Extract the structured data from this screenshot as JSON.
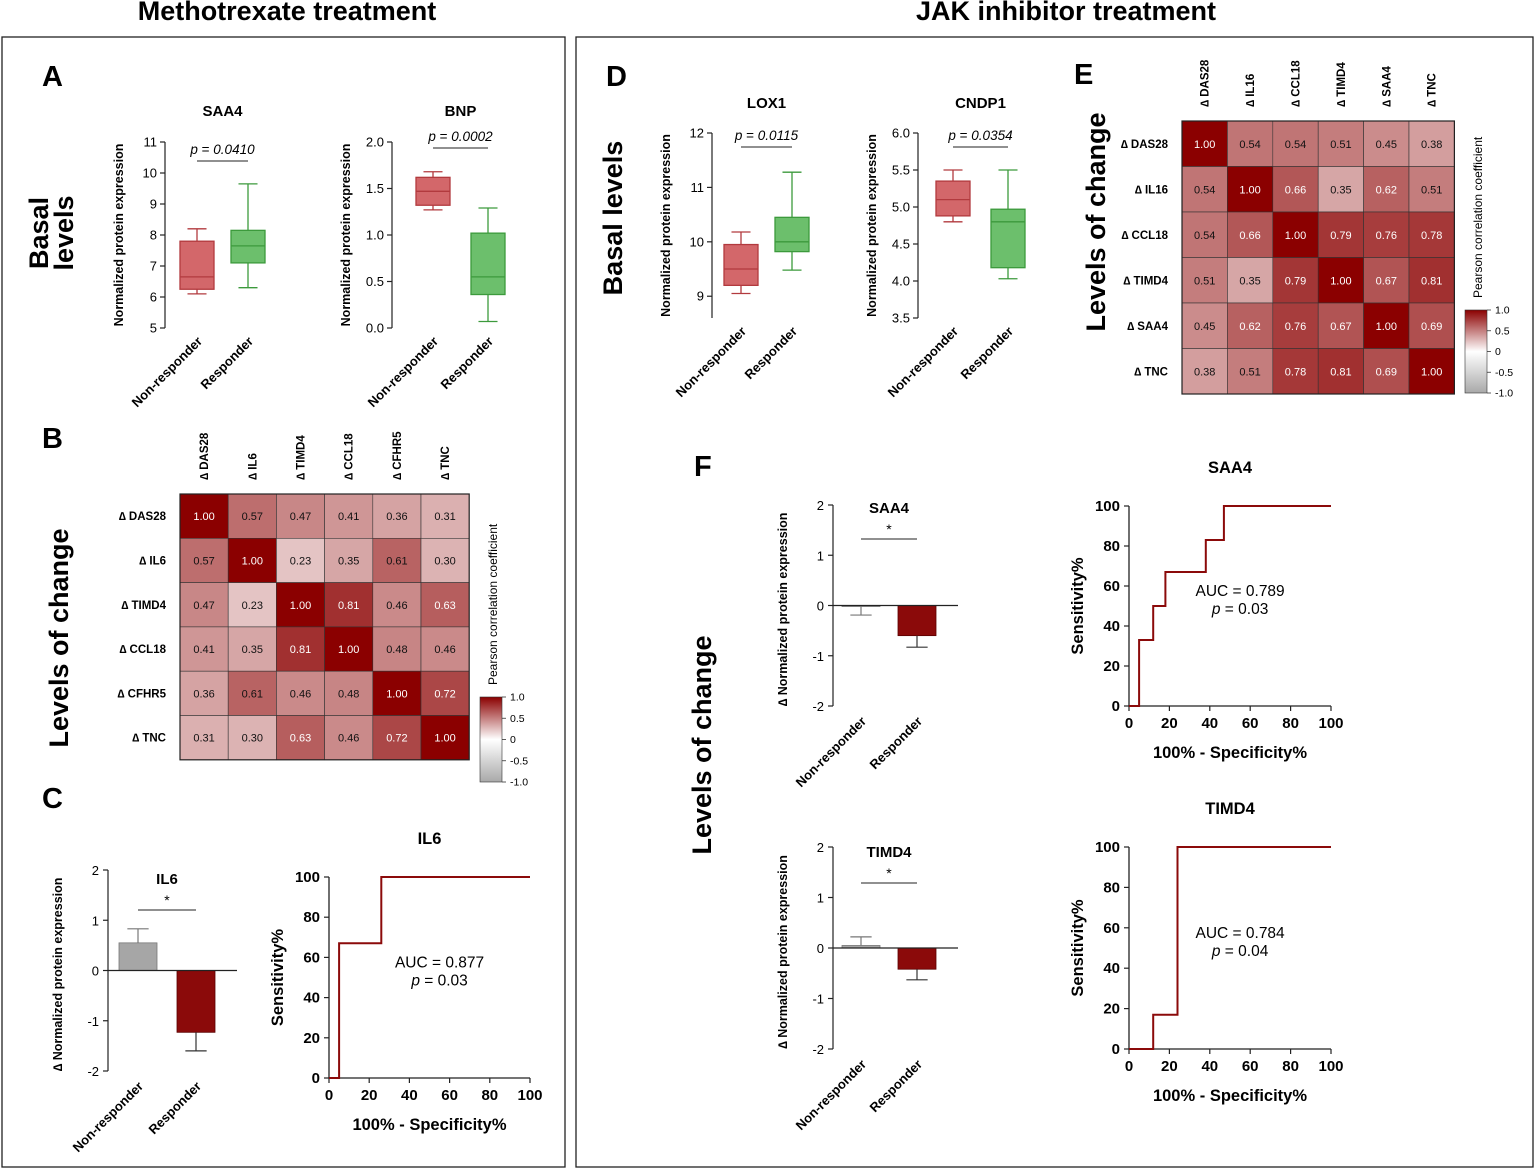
{
  "figure": {
    "left_section_title": "Methotrexate treatment",
    "right_section_title": "JAK inhibitor treatment",
    "row_labels": {
      "basal_line1": "Basal",
      "basal_line2": "levels",
      "basal_levels": "Basal levels",
      "levels_of_change": "Levels of change"
    },
    "colors": {
      "nonresponder_box": "#d3676a",
      "nonresponder_edge": "#b23a3e",
      "responder_box": "#6cbf6c",
      "responder_edge": "#3c9a3c",
      "dark_red": "#8b0a0a",
      "gray_bar": "#a6a6a6",
      "heat_high": "#8b0000",
      "heat_mid": "#ffffff",
      "heat_low": "#a9a9a9"
    }
  },
  "chart_data": [
    {
      "id": "A1",
      "panel": "A",
      "type": "box",
      "title": "SAA4",
      "ylabel": "Normalized protein expression",
      "ylim": [
        5,
        11
      ],
      "yticks": [
        "5",
        "6",
        "7",
        "8",
        "9",
        "10",
        "11"
      ],
      "p_value": "p = 0.0410",
      "categories": [
        "Non-responder",
        "Responder"
      ],
      "boxes": [
        {
          "group": "Non-responder",
          "min": 6.1,
          "q1": 6.25,
          "median": 6.65,
          "q3": 7.8,
          "max": 8.2
        },
        {
          "group": "Responder",
          "min": 6.3,
          "q1": 7.1,
          "median": 7.65,
          "q3": 8.15,
          "max": 9.65
        }
      ]
    },
    {
      "id": "A2",
      "panel": "A",
      "type": "box",
      "title": "BNP",
      "ylabel": "Normalized protein expression",
      "ylim": [
        0.0,
        2.0
      ],
      "yticks": [
        "0.0",
        "0.5",
        "1.0",
        "1.5",
        "2.0"
      ],
      "p_value": "p = 0.0002",
      "categories": [
        "Non-responder",
        "Responder"
      ],
      "boxes": [
        {
          "group": "Non-responder",
          "min": 1.27,
          "q1": 1.32,
          "median": 1.47,
          "q3": 1.62,
          "max": 1.68
        },
        {
          "group": "Responder",
          "min": 0.07,
          "q1": 0.36,
          "median": 0.55,
          "q3": 1.02,
          "max": 1.29
        }
      ]
    },
    {
      "id": "D1",
      "panel": "D",
      "type": "box",
      "title": "LOX1",
      "ylabel": "Normalized protein expression",
      "ylim": [
        8.6,
        12
      ],
      "yticks": [
        "9",
        "10",
        "11",
        "12"
      ],
      "p_value": "p = 0.0115",
      "categories": [
        "Non-responder",
        "Responder"
      ],
      "boxes": [
        {
          "group": "Non-responder",
          "min": 9.05,
          "q1": 9.2,
          "median": 9.5,
          "q3": 9.95,
          "max": 10.18
        },
        {
          "group": "Responder",
          "min": 9.48,
          "q1": 9.82,
          "median": 10.0,
          "q3": 10.45,
          "max": 11.28
        }
      ]
    },
    {
      "id": "D2",
      "panel": "D",
      "type": "box",
      "title": "CNDP1",
      "ylabel": "Normalized protein expression",
      "ylim": [
        3.5,
        6.0
      ],
      "yticks": [
        "3.5",
        "4.0",
        "4.5",
        "5.0",
        "5.5",
        "6.0"
      ],
      "p_value": "p = 0.0354",
      "categories": [
        "Non-responder",
        "Responder"
      ],
      "boxes": [
        {
          "group": "Non-responder",
          "min": 4.8,
          "q1": 4.88,
          "median": 5.1,
          "q3": 5.35,
          "max": 5.5
        },
        {
          "group": "Responder",
          "min": 4.03,
          "q1": 4.18,
          "median": 4.8,
          "q3": 4.97,
          "max": 5.5
        }
      ]
    },
    {
      "id": "B",
      "panel": "B",
      "type": "heatmap",
      "labels": [
        "∆ DAS28",
        "∆ IL6",
        "∆ TIMD4",
        "∆ CCL18",
        "∆ CFHR5",
        "∆ TNC"
      ],
      "values": [
        [
          1.0,
          0.57,
          0.47,
          0.41,
          0.36,
          0.31
        ],
        [
          0.57,
          1.0,
          0.23,
          0.35,
          0.61,
          0.3
        ],
        [
          0.47,
          0.23,
          1.0,
          0.81,
          0.46,
          0.63
        ],
        [
          0.41,
          0.35,
          0.81,
          1.0,
          0.48,
          0.46
        ],
        [
          0.36,
          0.61,
          0.46,
          0.48,
          1.0,
          0.72
        ],
        [
          0.31,
          0.3,
          0.63,
          0.46,
          0.72,
          1.0
        ]
      ],
      "colorbar_title": "Pearson correlation coefficient",
      "colorbar_ticks": [
        "1.0",
        "0.5",
        "0",
        "-0.5",
        "-1.0"
      ]
    },
    {
      "id": "E",
      "panel": "E",
      "type": "heatmap",
      "labels": [
        "∆ DAS28",
        "∆ IL16",
        "∆ CCL18",
        "∆ TIMD4",
        "∆ SAA4",
        "∆ TNC"
      ],
      "values": [
        [
          1.0,
          0.54,
          0.54,
          0.51,
          0.45,
          0.38
        ],
        [
          0.54,
          1.0,
          0.66,
          0.35,
          0.62,
          0.51
        ],
        [
          0.54,
          0.66,
          1.0,
          0.79,
          0.76,
          0.78
        ],
        [
          0.51,
          0.35,
          0.79,
          1.0,
          0.67,
          0.81
        ],
        [
          0.45,
          0.62,
          0.76,
          0.67,
          1.0,
          0.69
        ],
        [
          0.38,
          0.51,
          0.78,
          0.81,
          0.69,
          1.0
        ]
      ],
      "colorbar_title": "Pearson correlation coefficient",
      "colorbar_ticks": [
        "1.0",
        "0.5",
        "0",
        "-0.5",
        "-1.0"
      ]
    },
    {
      "id": "C1",
      "panel": "C",
      "type": "bar",
      "title": "IL6",
      "ylabel": "∆ Normalized protein expression",
      "ylim": [
        -2,
        2
      ],
      "yticks": [
        "-2",
        "-1",
        "0",
        "1",
        "2"
      ],
      "significance": "*",
      "categories": [
        "Non-responder",
        "Responder"
      ],
      "values": [
        0.55,
        -1.23
      ],
      "errors": [
        0.28,
        0.37
      ],
      "bar_colors": [
        "gray",
        "darkred"
      ]
    },
    {
      "id": "F1",
      "panel": "F",
      "type": "bar",
      "title": "SAA4",
      "ylabel": "∆ Normalized protein expression",
      "ylim": [
        -2,
        2
      ],
      "yticks": [
        "-2",
        "-1",
        "0",
        "1",
        "2"
      ],
      "significance": "*",
      "categories": [
        "Non-responder",
        "Responder"
      ],
      "values": [
        -0.02,
        -0.6
      ],
      "errors": [
        0.17,
        0.23
      ],
      "bar_colors": [
        "gray",
        "darkred"
      ]
    },
    {
      "id": "F3",
      "panel": "F",
      "type": "bar",
      "title": "TIMD4",
      "ylabel": "∆ Normalized protein expression",
      "ylim": [
        -2,
        2
      ],
      "yticks": [
        "-2",
        "-1",
        "0",
        "1",
        "2"
      ],
      "significance": "*",
      "categories": [
        "Non-responder",
        "Responder"
      ],
      "values": [
        0.05,
        -0.42
      ],
      "errors": [
        0.17,
        0.21
      ],
      "bar_colors": [
        "gray",
        "darkred"
      ]
    },
    {
      "id": "C2",
      "panel": "C",
      "type": "line",
      "subtype": "roc",
      "title": "IL6",
      "xlabel": "100% - Specificity%",
      "ylabel": "Sensitivity%",
      "xlim": [
        0,
        100
      ],
      "ylim": [
        0,
        100
      ],
      "ticks": [
        "0",
        "20",
        "40",
        "60",
        "80",
        "100"
      ],
      "x": [
        0,
        5,
        5,
        26,
        26,
        100
      ],
      "y": [
        0,
        0,
        67,
        67,
        100,
        100
      ],
      "auc_text": "AUC = 0.877",
      "p_text": "p = 0.03"
    },
    {
      "id": "F2",
      "panel": "F",
      "type": "line",
      "subtype": "roc",
      "title": "SAA4",
      "xlabel": "100% - Specificity%",
      "ylabel": "Sensitivity%",
      "xlim": [
        0,
        100
      ],
      "ylim": [
        0,
        100
      ],
      "ticks": [
        "0",
        "20",
        "40",
        "60",
        "80",
        "100"
      ],
      "x": [
        0,
        5,
        5,
        6,
        6,
        12,
        12,
        18,
        18,
        38,
        38,
        47,
        47,
        100
      ],
      "y": [
        0,
        0,
        33,
        33,
        33,
        33,
        50,
        50,
        67,
        67,
        83,
        83,
        100,
        100
      ],
      "auc_text": "AUC = 0.789",
      "p_text": "p = 0.03"
    },
    {
      "id": "F4",
      "panel": "F",
      "type": "line",
      "subtype": "roc",
      "title": "TIMD4",
      "xlabel": "100% - Specificity%",
      "ylabel": "Sensitivity%",
      "xlim": [
        0,
        100
      ],
      "ylim": [
        0,
        100
      ],
      "ticks": [
        "0",
        "20",
        "40",
        "60",
        "80",
        "100"
      ],
      "x": [
        0,
        12,
        12,
        24,
        24,
        100
      ],
      "y": [
        0,
        0,
        17,
        17,
        100,
        100
      ],
      "auc_text": "AUC = 0.784",
      "p_text": "p = 0.04"
    }
  ]
}
